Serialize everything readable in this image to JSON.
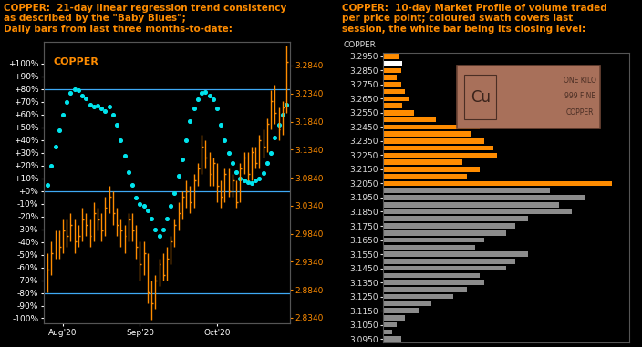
{
  "chart_data": [
    {
      "type": "ohlc",
      "title": "COPPER:  21-day linear regression trend consistency\nas described by the \"Baby Blues\";\nDaily bars from last three months-to-date:",
      "annotations": [
        "COPPER"
      ],
      "categories": [
        null,
        null,
        null,
        null,
        "Aug'20",
        null,
        null,
        null,
        null,
        null,
        null,
        null,
        null,
        null,
        null,
        null,
        null,
        null,
        null,
        null,
        null,
        null,
        null,
        null,
        "Sep'20",
        null,
        null,
        null,
        null,
        null,
        null,
        null,
        null,
        null,
        null,
        null,
        null,
        null,
        null,
        null,
        null,
        null,
        null,
        null,
        "Oct'20",
        null,
        null,
        null,
        null,
        null,
        null,
        null,
        null,
        null,
        null,
        null,
        null,
        null,
        null,
        null,
        null,
        null,
        null
      ],
      "series": [
        {
          "type": "ohlc",
          "axis": "y2",
          "color": "#ff8c00",
          "high": [
            2.95,
            2.97,
            2.99,
            2.99,
            3.01,
            3.01,
            3.02,
            3.01,
            3.0,
            3.03,
            3.02,
            3.01,
            3.04,
            3.03,
            3.02,
            3.05,
            3.07,
            3.06,
            3.03,
            3.01,
            3.0,
            3.02,
            3.02,
            3.0,
            2.97,
            2.97,
            2.95,
            2.9,
            2.91,
            2.94,
            2.95,
            2.96,
            2.98,
            3.01,
            3.04,
            3.06,
            3.08,
            3.07,
            3.09,
            3.11,
            3.16,
            3.15,
            3.13,
            3.12,
            3.11,
            3.08,
            3.1,
            3.1,
            3.09,
            3.08,
            3.11,
            3.13,
            3.13,
            3.14,
            3.14,
            3.16,
            3.17,
            3.19,
            3.24,
            3.25,
            3.21,
            3.22,
            3.32
          ],
          "low": [
            2.88,
            2.91,
            2.94,
            2.94,
            2.95,
            2.96,
            2.97,
            2.95,
            2.96,
            2.97,
            2.98,
            2.96,
            2.97,
            2.99,
            2.97,
            2.98,
            3.02,
            3.0,
            2.98,
            2.96,
            2.95,
            2.97,
            2.97,
            2.94,
            2.9,
            2.91,
            2.86,
            2.83,
            2.85,
            2.89,
            2.9,
            2.9,
            2.93,
            2.96,
            2.99,
            3.01,
            3.03,
            3.02,
            3.03,
            3.07,
            3.09,
            3.1,
            3.07,
            3.07,
            3.04,
            3.03,
            3.04,
            3.05,
            3.05,
            3.03,
            3.04,
            3.09,
            3.08,
            3.08,
            3.1,
            3.1,
            3.12,
            3.13,
            3.17,
            3.18,
            3.15,
            3.16,
            3.2
          ],
          "close": [
            2.92,
            2.95,
            2.97,
            2.96,
            2.99,
            2.98,
            3.0,
            2.97,
            2.98,
            3.01,
            3.0,
            2.98,
            3.02,
            3.01,
            2.99,
            3.03,
            3.05,
            3.02,
            3.0,
            2.99,
            2.98,
            3.01,
            2.99,
            2.96,
            2.93,
            2.95,
            2.88,
            2.86,
            2.9,
            2.93,
            2.91,
            2.94,
            2.97,
            3.0,
            3.02,
            3.05,
            3.06,
            3.04,
            3.08,
            3.1,
            3.14,
            3.12,
            3.09,
            3.11,
            3.07,
            3.05,
            3.09,
            3.06,
            3.08,
            3.04,
            3.1,
            3.12,
            3.09,
            3.13,
            3.11,
            3.15,
            3.14,
            3.18,
            3.22,
            3.2,
            3.17,
            3.21,
            3.29
          ]
        },
        {
          "type": "scatter",
          "color": "#00e5ee",
          "marker": "o",
          "values": [
            5,
            20,
            35,
            48,
            60,
            70,
            77,
            80,
            79,
            75,
            73,
            68,
            66,
            67,
            65,
            63,
            66,
            60,
            52,
            40,
            28,
            15,
            5,
            -5,
            -10,
            -12,
            -15,
            -22,
            -30,
            -35,
            -30,
            -22,
            -12,
            -2,
            12,
            25,
            40,
            55,
            65,
            72,
            77,
            78,
            75,
            72,
            65,
            52,
            40,
            30,
            22,
            15,
            10,
            8,
            7,
            6,
            8,
            10,
            14,
            22,
            30,
            42,
            52,
            60,
            68
          ]
        }
      ],
      "reference_lines": [
        80,
        0,
        -80
      ],
      "ylim": [
        -104,
        117
      ],
      "yticks": [
        {
          "value": 100,
          "label": "+100%"
        },
        {
          "value": 90,
          "label": "+90%"
        },
        {
          "value": 80,
          "label": "+80%"
        },
        {
          "value": 70,
          "label": "+70%"
        },
        {
          "value": 60,
          "label": "+60%"
        },
        {
          "value": 50,
          "label": "+50%"
        },
        {
          "value": 40,
          "label": "+40%"
        },
        {
          "value": 30,
          "label": "+30%"
        },
        {
          "value": 20,
          "label": "+20%"
        },
        {
          "value": 10,
          "label": "+10%"
        },
        {
          "value": 0,
          "label": "+0%"
        },
        {
          "value": -10,
          "label": "-10%"
        },
        {
          "value": -20,
          "label": "-20%"
        },
        {
          "value": -30,
          "label": "-30%"
        },
        {
          "value": -40,
          "label": "-40%"
        },
        {
          "value": -50,
          "label": "-50%"
        },
        {
          "value": -60,
          "label": "-60%"
        },
        {
          "value": -70,
          "label": "-70%"
        },
        {
          "value": -80,
          "label": "-80%"
        },
        {
          "value": -90,
          "label": "-90%"
        },
        {
          "value": -100,
          "label": "-100%"
        }
      ],
      "y2lim": [
        2.824,
        3.326
      ],
      "y2ticks": [
        {
          "value": 3.284,
          "label": "3.2840"
        },
        {
          "value": 3.234,
          "label": "3.2340"
        },
        {
          "value": 3.184,
          "label": "3.1840"
        },
        {
          "value": 3.134,
          "label": "3.1340"
        },
        {
          "value": 3.084,
          "label": "3.0840"
        },
        {
          "value": 3.034,
          "label": "3.0340"
        },
        {
          "value": 2.984,
          "label": "2.9840"
        },
        {
          "value": 2.934,
          "label": "2.9340"
        },
        {
          "value": 2.884,
          "label": "2.8840"
        },
        {
          "value": 2.834,
          "label": "2.8340"
        }
      ],
      "grid": false
    },
    {
      "type": "bar",
      "orientation": "horizontal",
      "title": "COPPER:  10-day Market Profile of volume traded\nper price point; coloured swath covers last\nsession, the white bar being its closing level:",
      "ylabel": "COPPER",
      "annotations": [
        "Cu",
        "ONE KILO",
        "999 FINE",
        "COPPER"
      ],
      "y": [
        3.295,
        3.29,
        3.285,
        3.28,
        3.275,
        3.27,
        3.265,
        3.26,
        3.255,
        3.25,
        3.245,
        3.24,
        3.235,
        3.23,
        3.225,
        3.22,
        3.215,
        3.21,
        3.205,
        3.2,
        3.195,
        3.19,
        3.185,
        3.18,
        3.175,
        3.17,
        3.165,
        3.16,
        3.155,
        3.15,
        3.145,
        3.14,
        3.135,
        3.13,
        3.125,
        3.12,
        3.115,
        3.11,
        3.105,
        3.1,
        3.095
      ],
      "values": [
        18,
        22,
        20,
        15,
        20,
        25,
        30,
        22,
        35,
        60,
        110,
        100,
        115,
        125,
        130,
        90,
        110,
        95,
        260,
        190,
        230,
        200,
        215,
        165,
        150,
        140,
        115,
        105,
        165,
        150,
        140,
        110,
        115,
        95,
        80,
        55,
        40,
        25,
        15,
        10,
        20
      ],
      "colors": [
        "#ff8c00",
        "#ffffff",
        "#ff8c00",
        "#ff8c00",
        "#ff8c00",
        "#ff8c00",
        "#ff8c00",
        "#ff8c00",
        "#ff8c00",
        "#ff8c00",
        "#ff8c00",
        "#ff8c00",
        "#ff8c00",
        "#ff8c00",
        "#ff8c00",
        "#ff8c00",
        "#ff8c00",
        "#ff8c00",
        "#ff8c00",
        "#8c8c8c",
        "#8c8c8c",
        "#8c8c8c",
        "#8c8c8c",
        "#8c8c8c",
        "#8c8c8c",
        "#8c8c8c",
        "#8c8c8c",
        "#8c8c8c",
        "#8c8c8c",
        "#8c8c8c",
        "#8c8c8c",
        "#8c8c8c",
        "#8c8c8c",
        "#8c8c8c",
        "#8c8c8c",
        "#8c8c8c",
        "#8c8c8c",
        "#8c8c8c",
        "#8c8c8c",
        "#8c8c8c",
        "#8c8c8c"
      ],
      "xlim": [
        0,
        280
      ],
      "ylim": [
        3.0925,
        3.2975
      ],
      "yticks": [
        {
          "value": 3.295,
          "label": "3.2950"
        },
        {
          "value": 3.285,
          "label": "3.2850"
        },
        {
          "value": 3.275,
          "label": "3.2750"
        },
        {
          "value": 3.265,
          "label": "3.2650"
        },
        {
          "value": 3.255,
          "label": "3.2550"
        },
        {
          "value": 3.245,
          "label": "3.2450"
        },
        {
          "value": 3.235,
          "label": "3.2350"
        },
        {
          "value": 3.225,
          "label": "3.2250"
        },
        {
          "value": 3.215,
          "label": "3.2150"
        },
        {
          "value": 3.205,
          "label": "3.2050"
        },
        {
          "value": 3.195,
          "label": "3.1950"
        },
        {
          "value": 3.185,
          "label": "3.1850"
        },
        {
          "value": 3.175,
          "label": "3.1750"
        },
        {
          "value": 3.165,
          "label": "3.1650"
        },
        {
          "value": 3.155,
          "label": "3.1550"
        },
        {
          "value": 3.145,
          "label": "3.1450"
        },
        {
          "value": 3.135,
          "label": "3.1350"
        },
        {
          "value": 3.125,
          "label": "3.1250"
        },
        {
          "value": 3.115,
          "label": "3.1150"
        },
        {
          "value": 3.105,
          "label": "3.1050"
        },
        {
          "value": 3.095,
          "label": "3.0950"
        }
      ],
      "tick_labels": "y"
    }
  ]
}
